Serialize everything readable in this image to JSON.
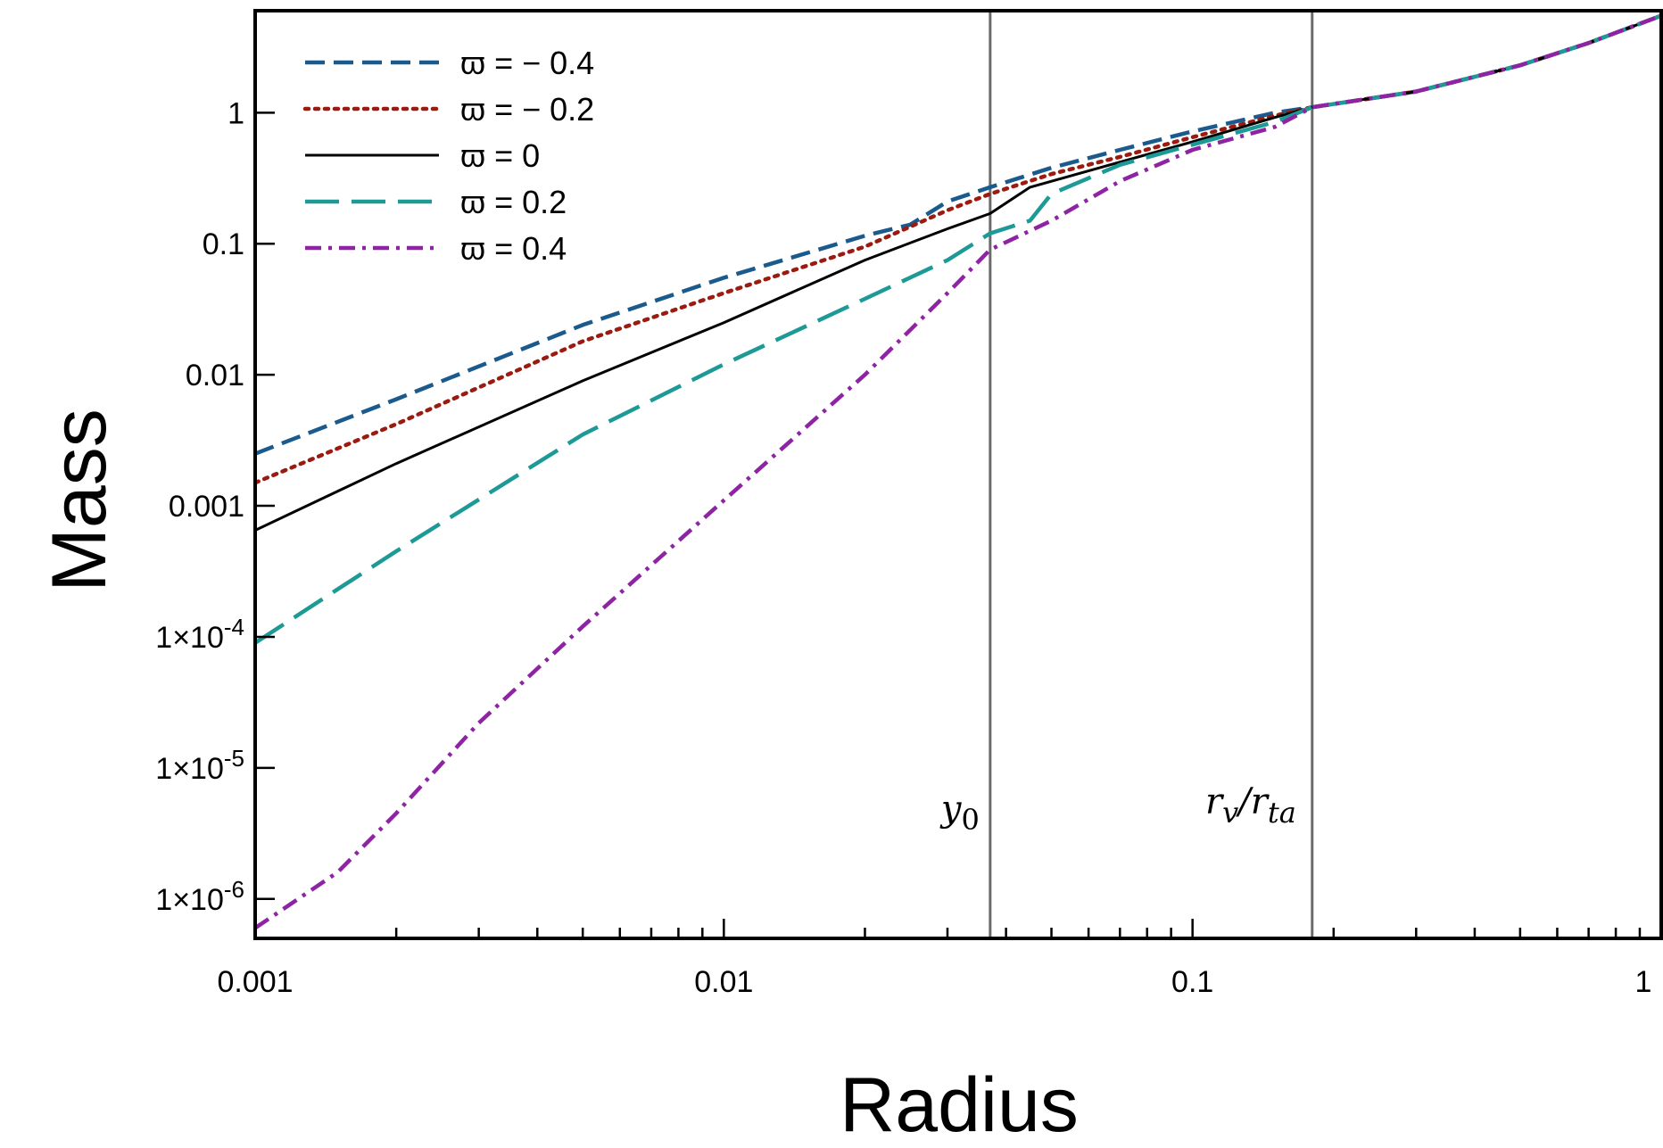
{
  "chart_data": {
    "type": "line",
    "xlabel": "Radius",
    "ylabel": "Mass",
    "xscale": "log",
    "yscale": "log",
    "xlim": [
      0.001,
      1
    ],
    "ylim": [
      5e-07,
      6
    ],
    "xticks": [
      {
        "value": 0.001,
        "label": "0.001"
      },
      {
        "value": 0.01,
        "label": "0.01"
      },
      {
        "value": 0.1,
        "label": "0.1"
      },
      {
        "value": 1,
        "label": "1"
      }
    ],
    "yticks": [
      {
        "value": 1e-06,
        "label_base": "1×10",
        "label_exp": "-6"
      },
      {
        "value": 1e-05,
        "label_base": "1×10",
        "label_exp": "-5"
      },
      {
        "value": 0.0001,
        "label_base": "1×10",
        "label_exp": "-4"
      },
      {
        "value": 0.001,
        "label_base": "0.001",
        "label_exp": ""
      },
      {
        "value": 0.01,
        "label_base": "0.01",
        "label_exp": ""
      },
      {
        "value": 0.1,
        "label_base": "0.1",
        "label_exp": ""
      },
      {
        "value": 1,
        "label_base": "1",
        "label_exp": ""
      }
    ],
    "legend_position": "top-left",
    "grid": false,
    "vlines": [
      {
        "x": 0.037,
        "label": "y",
        "label_sub": "0"
      },
      {
        "x": 0.18,
        "label": "r",
        "label_sub": "v",
        "label_mid": "/r",
        "label_sub2": "ta"
      }
    ],
    "series": [
      {
        "name": "ϖ = − 0.4",
        "color": "#1b5a8c",
        "dash": "dashed",
        "x": [
          0.001,
          0.002,
          0.005,
          0.01,
          0.02,
          0.025,
          0.03,
          0.037,
          0.05,
          0.07,
          0.1,
          0.15,
          0.18,
          0.3,
          0.5,
          0.7,
          1.0
        ],
        "y": [
          0.0025,
          0.0065,
          0.024,
          0.055,
          0.115,
          0.14,
          0.21,
          0.27,
          0.38,
          0.52,
          0.72,
          1.0,
          1.1,
          1.45,
          2.3,
          3.4,
          5.5
        ]
      },
      {
        "name": "ϖ = − 0.2",
        "color": "#9b1b10",
        "dash": "dotted",
        "x": [
          0.001,
          0.002,
          0.005,
          0.01,
          0.02,
          0.03,
          0.037,
          0.05,
          0.07,
          0.1,
          0.15,
          0.18,
          0.3,
          0.5,
          0.7,
          1.0
        ],
        "y": [
          0.0015,
          0.0042,
          0.018,
          0.042,
          0.095,
          0.18,
          0.24,
          0.34,
          0.46,
          0.65,
          0.95,
          1.1,
          1.45,
          2.3,
          3.4,
          5.5
        ]
      },
      {
        "name": "ϖ = 0",
        "color": "#000000",
        "dash": "solid",
        "x": [
          0.001,
          0.002,
          0.005,
          0.01,
          0.02,
          0.03,
          0.037,
          0.045,
          0.07,
          0.1,
          0.15,
          0.18,
          0.3,
          0.5,
          0.7,
          1.0
        ],
        "y": [
          0.00065,
          0.0021,
          0.009,
          0.025,
          0.075,
          0.13,
          0.17,
          0.27,
          0.42,
          0.6,
          0.92,
          1.1,
          1.45,
          2.3,
          3.4,
          5.5
        ]
      },
      {
        "name": "ϖ = 0.2",
        "color": "#1d9a96",
        "dash": "longdash",
        "x": [
          0.001,
          0.002,
          0.005,
          0.01,
          0.02,
          0.03,
          0.037,
          0.045,
          0.05,
          0.07,
          0.1,
          0.15,
          0.18,
          0.3,
          0.5,
          0.7,
          1.0
        ],
        "y": [
          9e-05,
          0.00045,
          0.0035,
          0.012,
          0.038,
          0.075,
          0.12,
          0.15,
          0.24,
          0.4,
          0.57,
          0.85,
          1.1,
          1.45,
          2.3,
          3.4,
          5.5
        ]
      },
      {
        "name": "ϖ = 0.4",
        "color": "#8e24a4",
        "dash": "dashdot",
        "x": [
          0.001,
          0.0015,
          0.002,
          0.003,
          0.005,
          0.01,
          0.02,
          0.03,
          0.037,
          0.05,
          0.07,
          0.1,
          0.15,
          0.18,
          0.3,
          0.5,
          0.7,
          1.0
        ],
        "y": [
          6e-07,
          1.6e-06,
          4.5e-06,
          2.2e-05,
          0.00012,
          0.0011,
          0.01,
          0.042,
          0.09,
          0.15,
          0.3,
          0.52,
          0.78,
          1.1,
          1.45,
          2.3,
          3.4,
          5.5
        ]
      }
    ]
  }
}
